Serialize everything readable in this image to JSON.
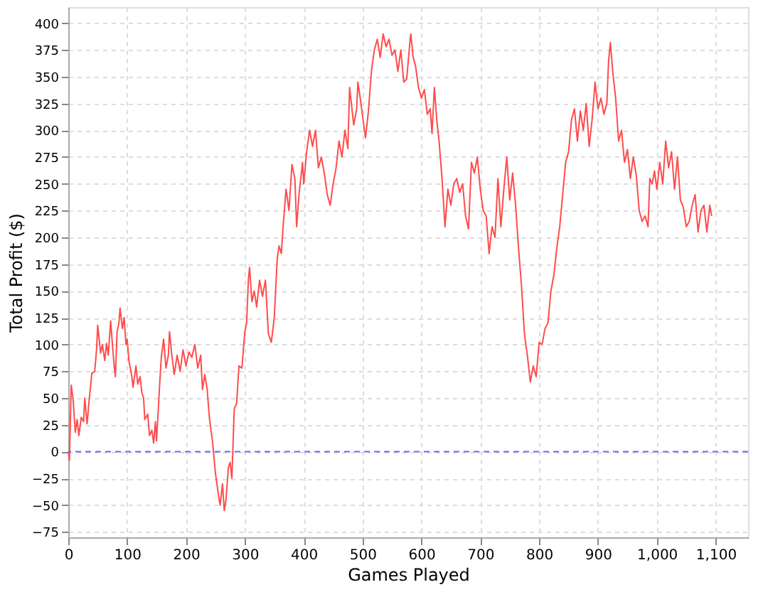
{
  "chart_data": {
    "type": "line",
    "xlabel": "Games Played",
    "ylabel": "Total Profit ($)",
    "xlim": [
      0,
      1155
    ],
    "ylim": [
      -80,
      415
    ],
    "xticks": [
      0,
      100,
      200,
      300,
      400,
      500,
      600,
      700,
      800,
      900,
      {
        "value": 1000,
        "label": "1,000"
      },
      {
        "value": 1100,
        "label": "1,100"
      }
    ],
    "yticks": [
      -75,
      -50,
      -25,
      0,
      25,
      50,
      75,
      100,
      125,
      150,
      175,
      200,
      225,
      250,
      275,
      300,
      325,
      350,
      375,
      400
    ],
    "grid": true,
    "marker": "none",
    "line_style": "solid",
    "ref_lines": [
      {
        "axis": "y",
        "value": 0,
        "color": "#6666ff",
        "line_style": "dashed"
      }
    ],
    "series": [
      {
        "color": "#ff4c4c",
        "x": [
          0,
          2,
          5,
          8,
          12,
          15,
          18,
          22,
          26,
          28,
          32,
          35,
          40,
          45,
          48,
          50,
          55,
          58,
          62,
          65,
          68,
          72,
          75,
          78,
          80,
          83,
          86,
          88,
          92,
          95,
          98,
          100,
          103,
          108,
          110,
          115,
          118,
          122,
          125,
          128,
          130,
          135,
          138,
          142,
          145,
          148,
          150,
          155,
          158,
          162,
          166,
          170,
          172,
          176,
          180,
          185,
          190,
          195,
          200,
          205,
          210,
          215,
          220,
          225,
          228,
          232,
          236,
          240,
          245,
          250,
          255,
          258,
          262,
          265,
          268,
          272,
          275,
          278,
          282,
          286,
          290,
          295,
          300,
          303,
          306,
          308,
          312,
          316,
          320,
          325,
          330,
          335,
          340,
          345,
          350,
          355,
          358,
          362,
          365,
          370,
          375,
          380,
          385,
          388,
          392,
          398,
          400,
          405,
          410,
          415,
          420,
          425,
          430,
          435,
          440,
          445,
          450,
          455,
          460,
          465,
          470,
          475,
          478,
          485,
          490,
          492,
          496,
          502,
          505,
          510,
          515,
          520,
          525,
          530,
          535,
          540,
          545,
          550,
          555,
          560,
          565,
          570,
          575,
          580,
          582,
          586,
          590,
          595,
          600,
          605,
          610,
          615,
          618,
          622,
          626,
          630,
          635,
          640,
          645,
          650,
          655,
          660,
          665,
          670,
          675,
          680,
          685,
          690,
          695,
          700,
          705,
          710,
          715,
          720,
          725,
          730,
          735,
          740,
          745,
          750,
          755,
          760,
          765,
          770,
          775,
          780,
          785,
          790,
          795,
          800,
          805,
          810,
          815,
          820,
          825,
          830,
          835,
          840,
          845,
          850,
          855,
          860,
          865,
          870,
          875,
          880,
          885,
          890,
          895,
          900,
          905,
          910,
          915,
          918,
          921,
          925,
          930,
          935,
          940,
          945,
          950,
          955,
          960,
          965,
          970,
          975,
          980,
          985,
          988,
          992,
          996,
          1000,
          1005,
          1010,
          1015,
          1020,
          1025,
          1030,
          1035,
          1040,
          1045,
          1050,
          1055,
          1060,
          1065,
          1070,
          1075,
          1080,
          1085,
          1090,
          1093
        ],
        "values": [
          0,
          -8,
          62,
          50,
          18,
          30,
          15,
          32,
          28,
          50,
          26,
          45,
          73,
          75,
          95,
          118,
          92,
          100,
          85,
          101,
          90,
          122,
          100,
          80,
          70,
          112,
          120,
          134,
          115,
          125,
          100,
          105,
          85,
          70,
          60,
          80,
          63,
          70,
          55,
          50,
          30,
          35,
          15,
          20,
          8,
          28,
          10,
          60,
          88,
          105,
          78,
          90,
          112,
          90,
          72,
          90,
          75,
          95,
          80,
          93,
          88,
          100,
          78,
          90,
          58,
          72,
          58,
          30,
          10,
          -20,
          -40,
          -50,
          -30,
          -55,
          -45,
          -15,
          -10,
          -25,
          40,
          45,
          80,
          78,
          112,
          120,
          160,
          172,
          140,
          150,
          135,
          160,
          145,
          160,
          110,
          102,
          125,
          180,
          192,
          185,
          210,
          245,
          225,
          268,
          255,
          210,
          240,
          270,
          250,
          280,
          300,
          285,
          300,
          265,
          275,
          260,
          240,
          230,
          250,
          265,
          290,
          275,
          300,
          283,
          340,
          305,
          320,
          345,
          330,
          305,
          293,
          318,
          355,
          375,
          385,
          368,
          390,
          378,
          385,
          370,
          375,
          355,
          375,
          345,
          348,
          380,
          390,
          368,
          360,
          340,
          330,
          338,
          315,
          320,
          297,
          340,
          310,
          290,
          255,
          210,
          245,
          230,
          250,
          255,
          242,
          250,
          220,
          208,
          270,
          260,
          275,
          245,
          225,
          220,
          185,
          210,
          200,
          255,
          210,
          245,
          275,
          235,
          260,
          230,
          190,
          155,
          110,
          90,
          65,
          80,
          70,
          102,
          100,
          115,
          120,
          150,
          165,
          190,
          210,
          240,
          270,
          280,
          310,
          320,
          290,
          318,
          300,
          325,
          285,
          310,
          345,
          320,
          330,
          315,
          325,
          365,
          382,
          355,
          330,
          290,
          300,
          270,
          282,
          255,
          275,
          258,
          225,
          215,
          220,
          210,
          255,
          250,
          262,
          245,
          270,
          250,
          290,
          265,
          280,
          245,
          275,
          235,
          228,
          210,
          215,
          230,
          240,
          205,
          225,
          230,
          205,
          230,
          220
        ]
      }
    ]
  }
}
